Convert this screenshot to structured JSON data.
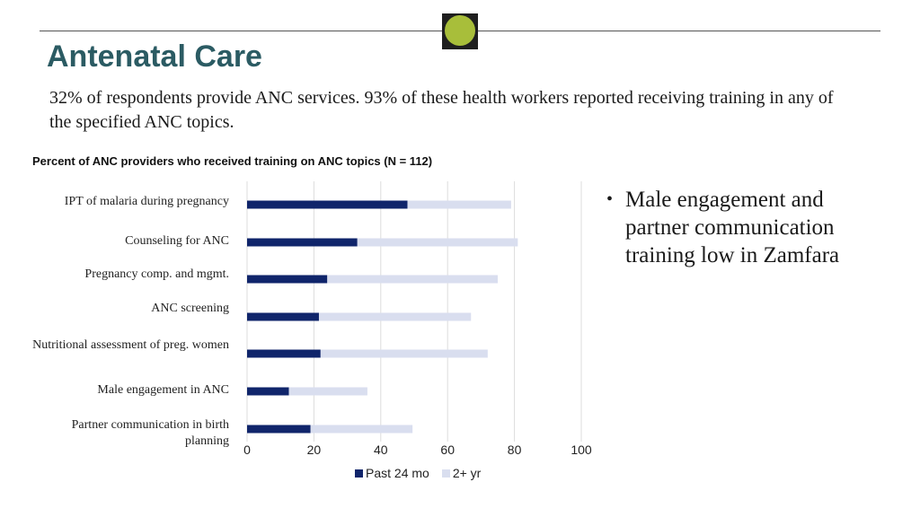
{
  "slide": {
    "title": "Antenatal Care",
    "subtitle": "32% of respondents provide ANC services. 93% of these health workers reported receiving training in any of the specified ANC topics.",
    "note": "Male engagement and partner communication training low in Zamfara"
  },
  "colors": {
    "title": "#2b5b63",
    "badge": "#a8be3a",
    "past_24_mo": "#10256b",
    "two_plus_yr": "#d9deef",
    "grid": "#dddddd"
  },
  "chart_data": {
    "type": "bar",
    "orientation": "horizontal",
    "stacked": true,
    "title": "Percent of ANC providers who received training on ANC topics (N = 112)",
    "categories": [
      "IPT of malaria during pregnancy",
      "Counseling for ANC",
      "Pregnancy comp. and mgmt.",
      "ANC screening",
      "Nutritional assessment of preg. women",
      "Male engagement in ANC",
      "Partner communication in birth planning"
    ],
    "series": [
      {
        "name": "Past 24 mo",
        "values": [
          48,
          33,
          24,
          21.5,
          22,
          12.5,
          19
        ]
      },
      {
        "name": "2+ yr",
        "values": [
          31,
          48,
          51,
          45.5,
          50,
          23.5,
          30.5
        ]
      }
    ],
    "xlim": [
      0,
      100
    ],
    "xticks": [
      0,
      20,
      40,
      60,
      80,
      100
    ],
    "grid": true,
    "legend": "bottom"
  }
}
